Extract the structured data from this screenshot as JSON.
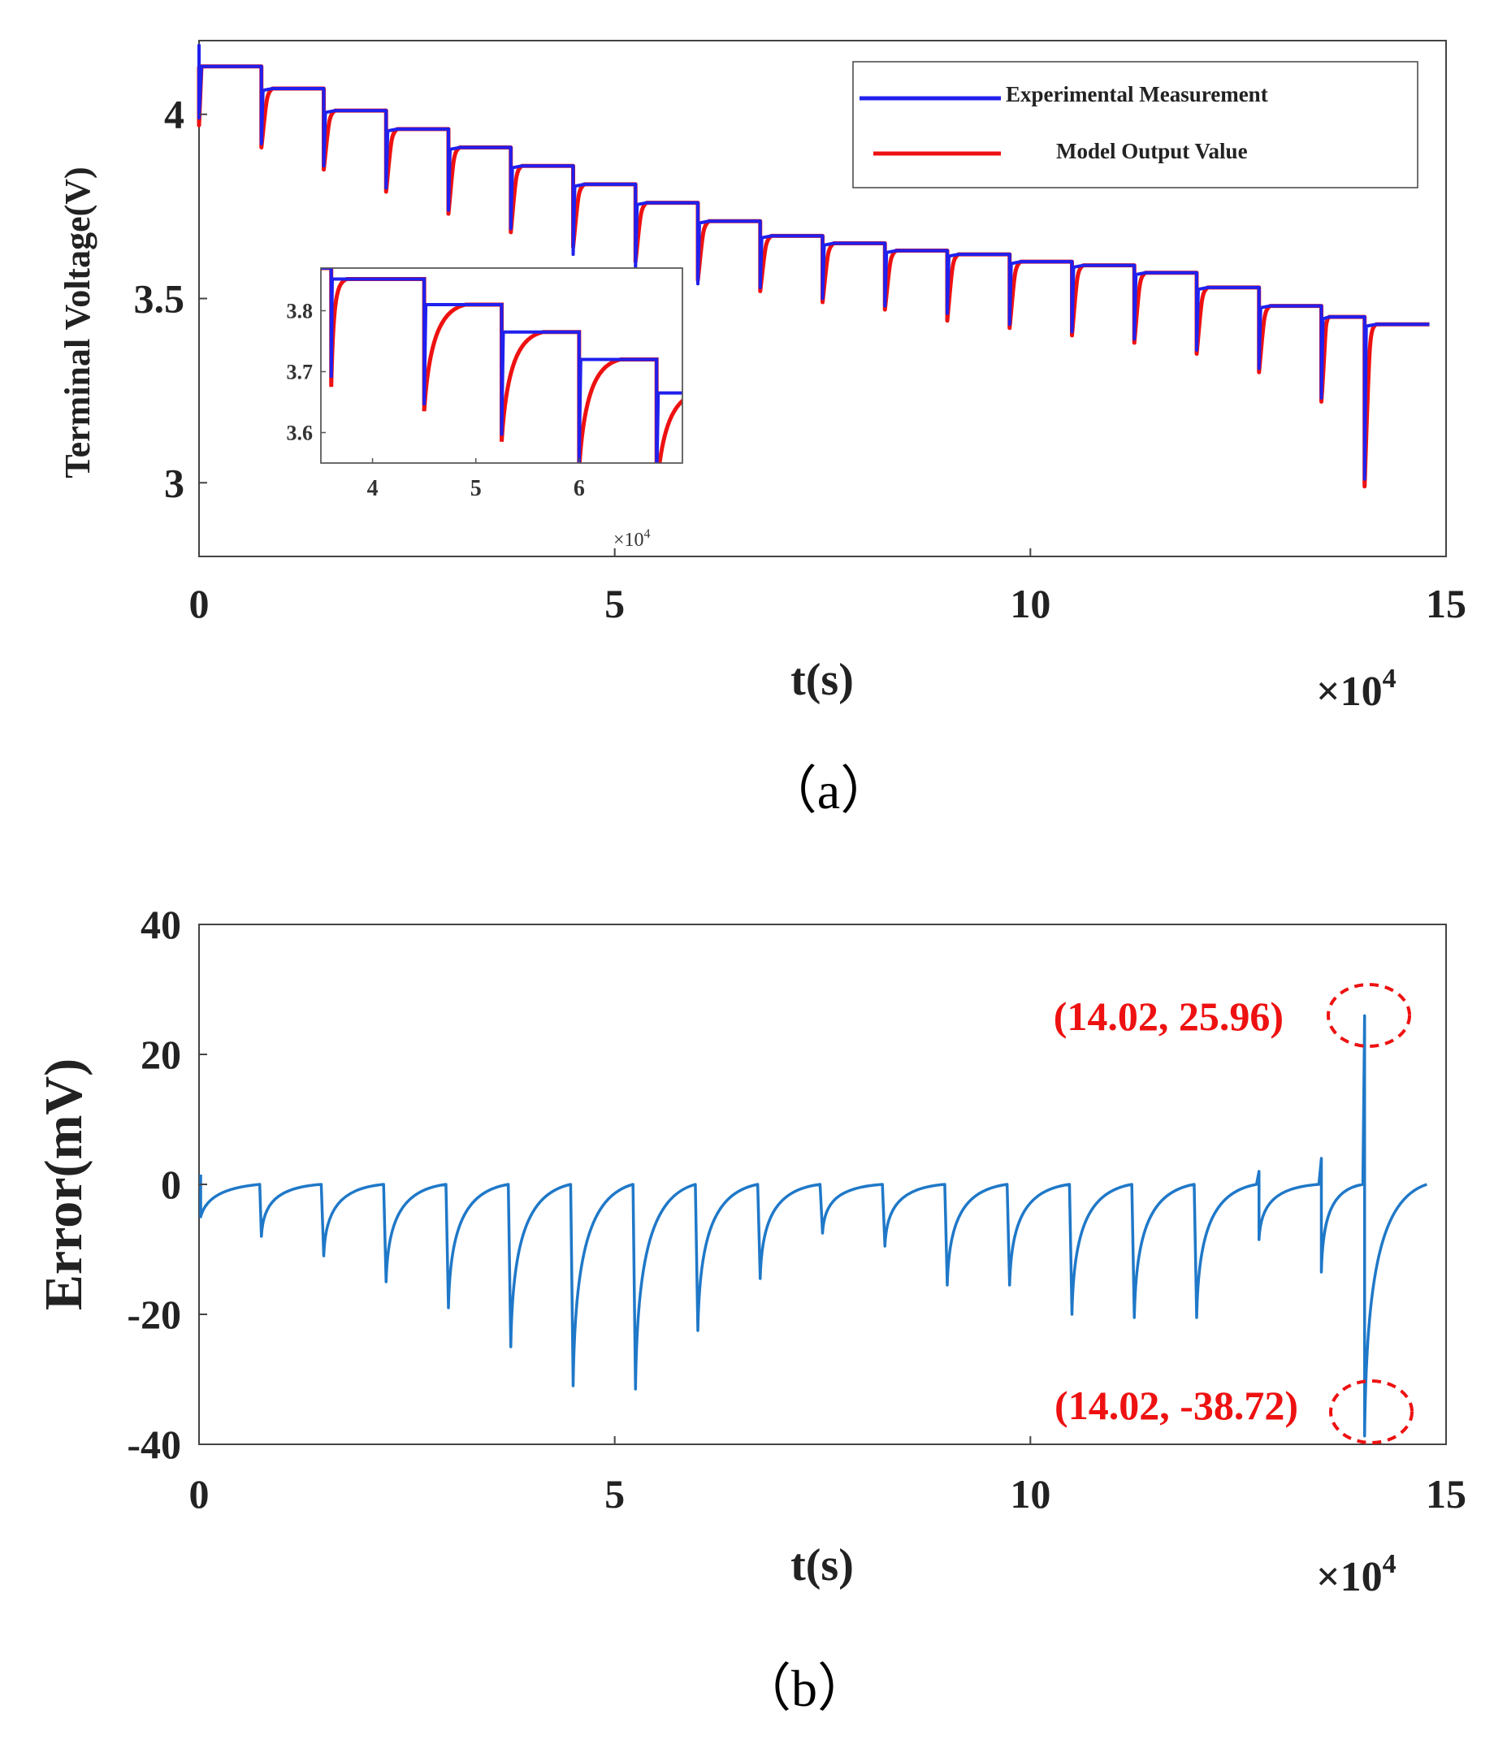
{
  "chart_data": [
    {
      "panel": "(a)",
      "type": "line",
      "xlabel": "t(s)",
      "ylabel": "Terminal Voltage(V)",
      "x_multiplier": "×10",
      "x_multiplier_exp": "4",
      "xlim": [
        0,
        15
      ],
      "ylim": [
        2.8,
        4.2
      ],
      "x_ticks": [
        "0",
        "5",
        "10",
        "15"
      ],
      "y_ticks": [
        "3",
        "3.5",
        "4"
      ],
      "legend": [
        {
          "label": "Experimental Measurement",
          "color": "#2020ee"
        },
        {
          "label": "Model Output Value",
          "color": "#ee1111"
        }
      ],
      "steps": {
        "x": [
          0,
          0.75,
          1.5,
          2.25,
          3.0,
          3.75,
          4.5,
          5.25,
          6.0,
          6.75,
          7.5,
          8.25,
          9.0,
          9.75,
          10.5,
          11.25,
          12.0,
          12.75,
          13.5,
          14.02,
          14.8
        ],
        "plateau_v": [
          4.13,
          4.07,
          4.01,
          3.96,
          3.91,
          3.86,
          3.81,
          3.76,
          3.71,
          3.67,
          3.65,
          3.63,
          3.62,
          3.6,
          3.59,
          3.57,
          3.53,
          3.48,
          3.45,
          3.43
        ],
        "drop_model_v": [
          3.97,
          3.91,
          3.85,
          3.79,
          3.73,
          3.68,
          3.64,
          3.6,
          3.55,
          3.52,
          3.49,
          3.47,
          3.44,
          3.42,
          3.4,
          3.38,
          3.35,
          3.3,
          3.22,
          2.99
        ],
        "drop_exp_v": [
          3.99,
          3.92,
          3.86,
          3.8,
          3.74,
          3.69,
          3.62,
          3.58,
          3.54,
          3.53,
          3.5,
          3.48,
          3.46,
          3.43,
          3.41,
          3.39,
          3.36,
          3.31,
          3.23,
          3.01
        ]
      },
      "inset": {
        "xlim": [
          3.5,
          7.0
        ],
        "ylim": [
          3.55,
          3.87
        ],
        "x_ticks": [
          "4",
          "5",
          "6"
        ],
        "y_ticks": [
          "3.6",
          "3.7",
          "3.8"
        ],
        "x_multiplier": "×10",
        "x_multiplier_exp": "4"
      }
    },
    {
      "panel": "(b)",
      "type": "line",
      "xlabel": "t(s)",
      "ylabel": "Error(mV)",
      "x_multiplier": "×10",
      "x_multiplier_exp": "4",
      "xlim": [
        0,
        15
      ],
      "ylim": [
        -40,
        40
      ],
      "x_ticks": [
        "0",
        "5",
        "10",
        "15"
      ],
      "y_ticks": [
        "-40",
        "-20",
        "0",
        "20",
        "40"
      ],
      "series_color": "#1f78c8",
      "pulses": {
        "x": [
          0.75,
          1.5,
          2.25,
          3.0,
          3.75,
          4.5,
          5.25,
          6.0,
          6.75,
          7.5,
          8.25,
          9.0,
          9.75,
          10.5,
          11.25,
          12.0,
          12.75,
          13.5,
          14.02
        ],
        "min_error": [
          -8,
          -11,
          -15,
          -19,
          -25,
          -31,
          -31.5,
          -22.5,
          -14.5,
          -7.5,
          -9.5,
          -15.5,
          -15.5,
          -20,
          -20.5,
          -20.5,
          -8.5,
          -13.5,
          -38.72
        ],
        "max_error": [
          0,
          0,
          0,
          0,
          0,
          0,
          0,
          0,
          0,
          0,
          0,
          0,
          0,
          0,
          0,
          0,
          2,
          4,
          25.96
        ]
      },
      "annotations": [
        {
          "text": "(14.02, 25.96)",
          "x": 14.02,
          "y": 25.96
        },
        {
          "text": "(14.02, -38.72)",
          "x": 14.02,
          "y": -38.72
        }
      ]
    }
  ],
  "panel_labels": {
    "a": "（a）",
    "b": "（b）"
  }
}
